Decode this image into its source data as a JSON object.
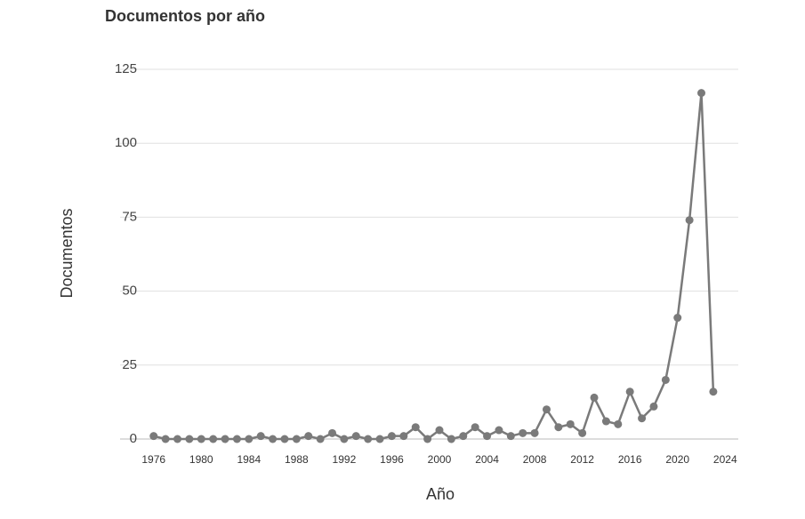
{
  "chart_data": {
    "type": "line",
    "title": "Documentos por año",
    "x_label": "Año",
    "y_label": "Documentos",
    "x": [
      1976,
      1977,
      1978,
      1979,
      1980,
      1981,
      1982,
      1983,
      1984,
      1985,
      1986,
      1987,
      1988,
      1989,
      1990,
      1991,
      1992,
      1993,
      1994,
      1995,
      1996,
      1997,
      1998,
      1999,
      2000,
      2001,
      2002,
      2003,
      2004,
      2005,
      2006,
      2007,
      2008,
      2009,
      2010,
      2011,
      2012,
      2013,
      2014,
      2015,
      2016,
      2017,
      2018,
      2019,
      2020,
      2021,
      2022,
      2023
    ],
    "series": [
      {
        "name": "Documentos",
        "color": "#7a7a7a",
        "values": [
          1,
          0,
          0,
          0,
          0,
          0,
          0,
          0,
          0,
          1,
          0,
          0,
          0,
          1,
          0,
          2,
          0,
          1,
          0,
          0,
          1,
          1,
          4,
          0,
          3,
          0,
          1,
          4,
          1,
          3,
          1,
          2,
          2,
          10,
          4,
          5,
          2,
          14,
          6,
          5,
          16,
          7,
          11,
          20,
          41,
          74,
          117,
          16
        ]
      }
    ],
    "xlim": [
      1974.9,
      2025.1
    ],
    "xticks": [
      1976,
      1980,
      1984,
      1988,
      1992,
      1996,
      2000,
      2004,
      2008,
      2012,
      2016,
      2020,
      2024
    ],
    "ylim": [
      0,
      125
    ],
    "yticks": [
      0,
      25,
      50,
      75,
      100,
      125
    ],
    "grid": true
  }
}
